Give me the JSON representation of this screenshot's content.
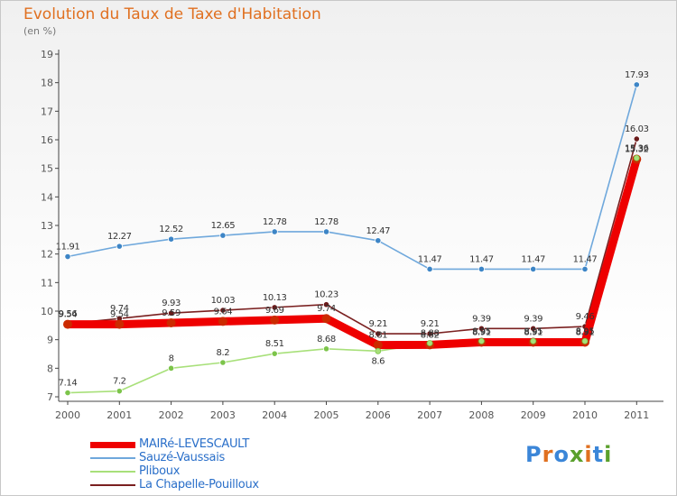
{
  "header": {
    "title": "Evolution du Taux de Taxe d'Habitation",
    "subtitle": "(en %)"
  },
  "logo": {
    "text": "Proxiti",
    "letters": [
      "P",
      "r",
      "o",
      "x",
      "i",
      "t",
      "i"
    ],
    "colors": [
      "#3b86d8",
      "#e07020",
      "#3b86d8",
      "#5aa02c",
      "#e07020",
      "#3b86d8",
      "#5aa02c"
    ]
  },
  "chart_data": {
    "type": "line",
    "title": "Evolution du Taux de Taxe d'Habitation",
    "ylabel": "(en %)",
    "xlabel": "",
    "categories": [
      "2000",
      "2001",
      "2002",
      "2003",
      "2004",
      "2005",
      "2006",
      "2007",
      "2008",
      "2009",
      "2010",
      "2011"
    ],
    "yticks": [
      "7",
      "8",
      "9",
      "10",
      "11",
      "12",
      "13",
      "14",
      "15",
      "16",
      "17",
      "18",
      "19"
    ],
    "ylim": [
      7,
      19
    ],
    "grid": false,
    "series": [
      {
        "name": "MAIRé-LEVESCAULT",
        "color": "#ee0000",
        "marker": "#cc2a00",
        "values": [
          9.54,
          9.54,
          9.59,
          9.64,
          9.69,
          9.74,
          8.81,
          8.82,
          8.91,
          8.91,
          8.91,
          15.32
        ],
        "labels": [
          "9.54",
          "9.54",
          "9.59",
          "9.64",
          "9.69",
          "9.74",
          "8.81",
          "8.82",
          "8.91",
          "8.91",
          "8.91",
          "15.32"
        ]
      },
      {
        "name": "Sauzé-Vaussais",
        "color": "#6fa8dc",
        "marker": "#3d85c6",
        "values": [
          11.91,
          12.27,
          12.52,
          12.65,
          12.78,
          12.78,
          12.47,
          11.47,
          11.47,
          11.47,
          11.47,
          17.93
        ],
        "labels": [
          "11.91",
          "12.27",
          "12.52",
          "12.65",
          "12.78",
          "12.78",
          "12.47",
          "11.47",
          "11.47",
          "11.47",
          "11.47",
          "17.93"
        ]
      },
      {
        "name": "Pliboux",
        "color": "#a8e07a",
        "marker": "#7cc44a",
        "values": [
          7.14,
          7.2,
          8,
          8.2,
          8.51,
          8.68,
          8.6,
          8.88,
          8.95,
          8.95,
          8.95,
          15.36
        ],
        "labels": [
          "7.14",
          "7.2",
          "8",
          "8.2",
          "8.51",
          "8.68",
          "8.6",
          "8.88",
          "8.95",
          "8.95",
          "8.95",
          "15.36"
        ]
      },
      {
        "name": "La Chapelle-Pouilloux",
        "color": "#7a2020",
        "marker": "#6a1a1a",
        "values": [
          9.56,
          9.74,
          9.93,
          10.03,
          10.13,
          10.23,
          9.21,
          9.21,
          9.39,
          9.39,
          9.46,
          16.03
        ],
        "labels": [
          "9.56",
          "9.74",
          "9.93",
          "10.03",
          "10.13",
          "10.23",
          "9.21",
          "9.21",
          "9.39",
          "9.39",
          "9.46",
          "16.03"
        ]
      }
    ],
    "legend": "bottom-left"
  },
  "legend": {
    "items": [
      {
        "label": "MAIRé-LEVESCAULT",
        "color": "#ee0000",
        "width": 6
      },
      {
        "label": "Sauzé-Vaussais",
        "color": "#6fa8dc",
        "width": 2
      },
      {
        "label": "Pliboux",
        "color": "#a8e07a",
        "width": 2
      },
      {
        "label": "La Chapelle-Pouilloux",
        "color": "#7a2020",
        "width": 2
      }
    ]
  }
}
